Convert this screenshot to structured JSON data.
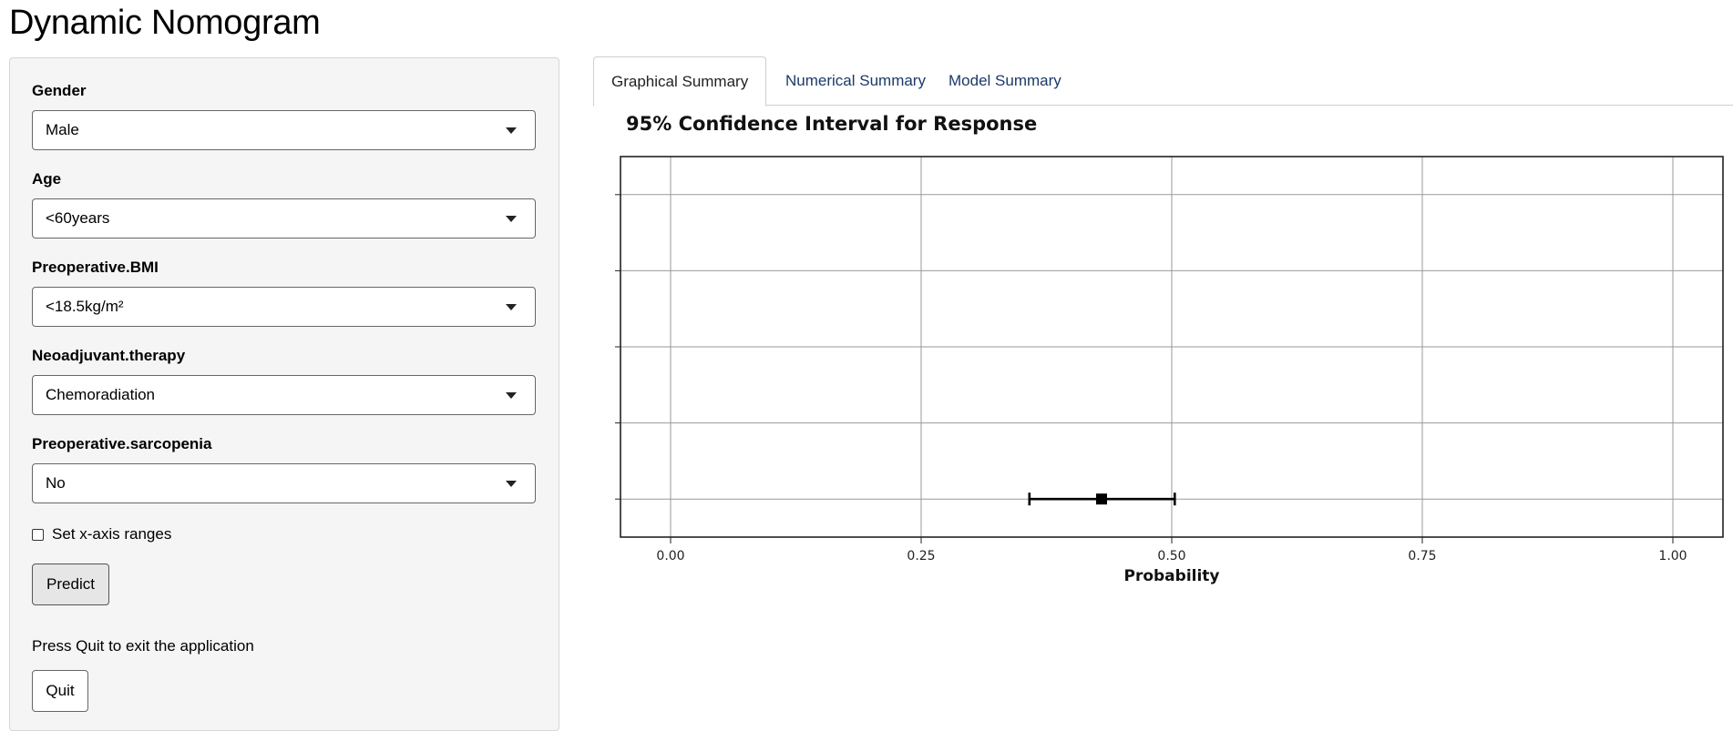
{
  "app": {
    "title": "Dynamic Nomogram"
  },
  "sidebar": {
    "fields": [
      {
        "label": "Gender",
        "value": "Male"
      },
      {
        "label": "Age",
        "value": "<60years"
      },
      {
        "label": "Preoperative.BMI",
        "value": "<18.5kg/m²"
      },
      {
        "label": "Neoadjuvant.therapy",
        "value": "Chemoradiation"
      },
      {
        "label": "Preoperative.sarcopenia",
        "value": "No"
      }
    ],
    "xaxis_checkbox": {
      "label": "Set x-axis ranges",
      "checked": false
    },
    "predict_label": "Predict",
    "quit_help": "Press Quit to exit the application",
    "quit_label": "Quit"
  },
  "tabs": [
    {
      "label": "Graphical Summary",
      "active": true
    },
    {
      "label": "Numerical Summary",
      "active": false
    },
    {
      "label": "Model Summary",
      "active": false
    }
  ],
  "chart_data": {
    "type": "scatter",
    "title": "95% Confidence Interval for Response",
    "xlabel": "Probability",
    "ylabel": "",
    "xlim": [
      -0.05,
      1.05
    ],
    "xticks": [
      0.0,
      0.25,
      0.5,
      0.75,
      1.0
    ],
    "xtick_labels": [
      "0.00",
      "0.25",
      "0.50",
      "0.75",
      "1.00"
    ],
    "y_rows": 5,
    "grid": true,
    "points": [
      {
        "row": 5,
        "estimate": 0.43,
        "lower": 0.358,
        "upper": 0.503
      }
    ]
  }
}
